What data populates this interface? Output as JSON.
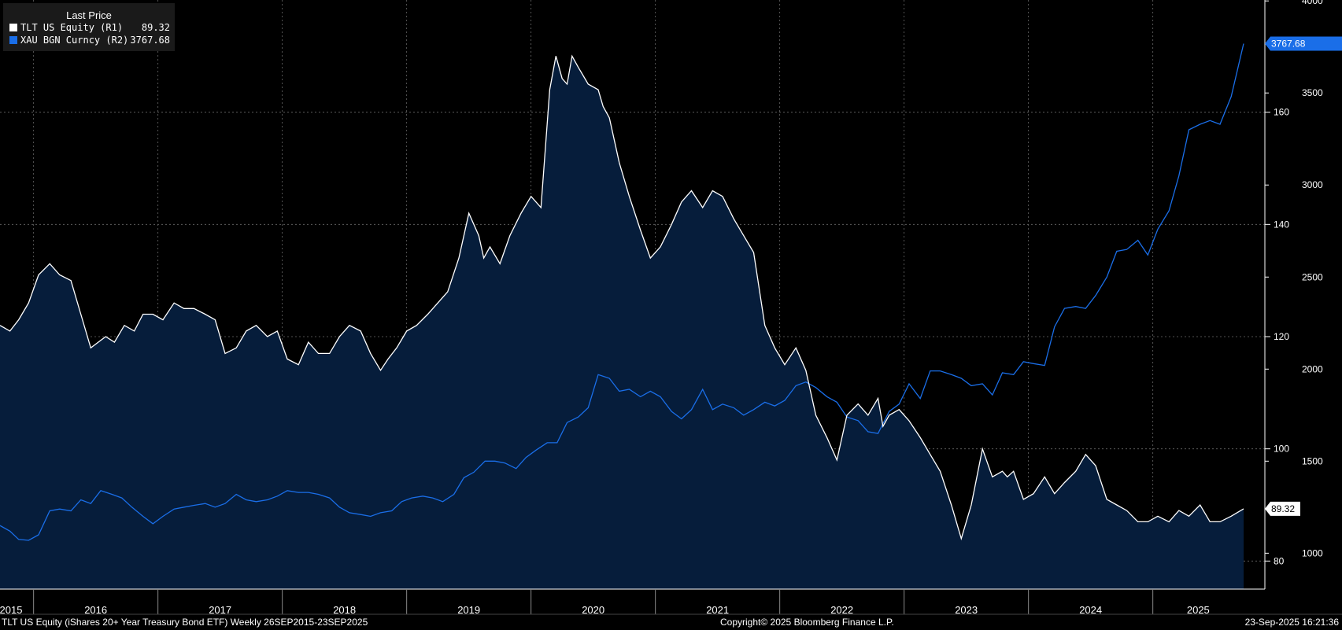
{
  "legend": {
    "title": "Last Price",
    "series1": {
      "label": "TLT US Equity  (R1)",
      "value": "89.32",
      "color": "#ffffff"
    },
    "series2": {
      "label": "XAU BGN Curncy  (R2)",
      "value": "3767.68",
      "color": "#1a6ee8"
    }
  },
  "footer": {
    "left": "TLT US Equity (iShares 20+ Year Treasury Bond ETF)  Weekly 26SEP2015-23SEP2025",
    "center": "Copyright© 2025 Bloomberg Finance L.P.",
    "right": "23-Sep-2025 16:21:36"
  },
  "colors": {
    "background": "#000000",
    "area_fill": "#061d3b",
    "tlt_line": "#ffffff",
    "gold_line": "#1a6ee8",
    "grid": "#6a6a6a"
  },
  "chart_data": {
    "type": "line",
    "title": "Last Price",
    "x_range": [
      2015.73,
      2025.73
    ],
    "year_labels": [
      "2015",
      "2016",
      "2017",
      "2018",
      "2019",
      "2020",
      "2021",
      "2022",
      "2023",
      "2024",
      "2025"
    ],
    "right_axis_1": {
      "ticks": [
        "80",
        "100",
        "120",
        "140",
        "160"
      ],
      "ylim": [
        75,
        180
      ]
    },
    "right_axis_2": {
      "ticks": [
        "1000",
        "1500",
        "2000",
        "2500",
        "3000",
        "3500",
        "4000"
      ],
      "ylim": [
        805,
        4005
      ]
    },
    "last_value_labels": {
      "tlt": "89.32",
      "gold": "3767.68"
    },
    "series": [
      {
        "name": "TLT US Equity (R1)",
        "axis": "R1",
        "style": "area",
        "x": [
          2015.73,
          2015.81,
          2015.88,
          2015.96,
          2016.04,
          2016.13,
          2016.21,
          2016.3,
          2016.38,
          2016.46,
          2016.52,
          2016.58,
          2016.65,
          2016.73,
          2016.81,
          2016.88,
          2016.96,
          2017.04,
          2017.13,
          2017.21,
          2017.29,
          2017.38,
          2017.46,
          2017.54,
          2017.63,
          2017.71,
          2017.79,
          2017.88,
          2017.96,
          2018.04,
          2018.13,
          2018.21,
          2018.29,
          2018.38,
          2018.46,
          2018.54,
          2018.63,
          2018.71,
          2018.79,
          2018.85,
          2018.92,
          2019.0,
          2019.08,
          2019.17,
          2019.25,
          2019.33,
          2019.42,
          2019.5,
          2019.58,
          2019.62,
          2019.67,
          2019.75,
          2019.83,
          2019.92,
          2020.0,
          2020.08,
          2020.15,
          2020.2,
          2020.25,
          2020.29,
          2020.33,
          2020.38,
          2020.46,
          2020.54,
          2020.58,
          2020.63,
          2020.71,
          2020.79,
          2020.88,
          2020.96,
          2021.04,
          2021.13,
          2021.21,
          2021.29,
          2021.38,
          2021.46,
          2021.54,
          2021.63,
          2021.71,
          2021.79,
          2021.88,
          2021.96,
          2022.04,
          2022.13,
          2022.21,
          2022.29,
          2022.38,
          2022.46,
          2022.54,
          2022.63,
          2022.71,
          2022.79,
          2022.83,
          2022.88,
          2022.96,
          2023.04,
          2023.13,
          2023.21,
          2023.29,
          2023.38,
          2023.46,
          2023.54,
          2023.63,
          2023.71,
          2023.79,
          2023.83,
          2023.88,
          2023.96,
          2024.04,
          2024.13,
          2024.21,
          2024.29,
          2024.38,
          2024.46,
          2024.54,
          2024.63,
          2024.71,
          2024.79,
          2024.88,
          2024.96,
          2025.04,
          2025.13,
          2025.21,
          2025.29,
          2025.38,
          2025.46,
          2025.54,
          2025.63,
          2025.73
        ],
        "values": [
          122,
          121,
          123,
          126,
          131,
          133,
          131,
          130,
          124,
          118,
          119,
          120,
          119,
          122,
          121,
          124,
          124,
          123,
          126,
          125,
          125,
          124,
          123,
          117,
          118,
          121,
          122,
          120,
          121,
          116,
          115,
          119,
          117,
          117,
          120,
          122,
          121,
          117,
          114,
          116,
          118,
          121,
          122,
          124,
          126,
          128,
          134,
          142,
          138,
          134,
          136,
          133,
          138,
          142,
          145,
          143,
          164,
          170,
          166,
          165,
          170,
          168,
          165,
          164,
          161,
          159,
          151,
          145,
          139,
          134,
          136,
          140,
          144,
          146,
          143,
          146,
          145,
          141,
          138,
          135,
          122,
          118,
          115,
          118,
          114,
          106,
          102,
          98,
          106,
          108,
          106,
          109,
          104,
          106,
          107,
          105,
          102,
          99,
          96,
          90,
          84,
          90,
          100,
          95,
          96,
          95,
          96,
          91,
          92,
          95,
          92,
          94,
          96,
          99,
          97,
          91,
          90,
          89,
          87,
          87,
          88,
          87,
          89,
          88,
          90,
          87,
          87,
          88,
          89.32
        ]
      },
      {
        "name": "XAU BGN Curncy (R2)",
        "axis": "R2",
        "style": "line",
        "x": [
          2015.73,
          2015.81,
          2015.88,
          2015.96,
          2016.04,
          2016.13,
          2016.21,
          2016.3,
          2016.38,
          2016.46,
          2016.54,
          2016.63,
          2016.71,
          2016.79,
          2016.88,
          2016.96,
          2017.04,
          2017.13,
          2017.21,
          2017.29,
          2017.38,
          2017.46,
          2017.54,
          2017.63,
          2017.71,
          2017.79,
          2017.88,
          2017.96,
          2018.04,
          2018.13,
          2018.21,
          2018.29,
          2018.38,
          2018.46,
          2018.54,
          2018.63,
          2018.71,
          2018.79,
          2018.88,
          2018.96,
          2019.04,
          2019.13,
          2019.21,
          2019.29,
          2019.38,
          2019.46,
          2019.54,
          2019.63,
          2019.71,
          2019.79,
          2019.88,
          2019.96,
          2020.04,
          2020.13,
          2020.21,
          2020.29,
          2020.38,
          2020.46,
          2020.54,
          2020.63,
          2020.71,
          2020.79,
          2020.88,
          2020.96,
          2021.04,
          2021.13,
          2021.21,
          2021.29,
          2021.38,
          2021.46,
          2021.54,
          2021.63,
          2021.71,
          2021.79,
          2021.88,
          2021.96,
          2022.04,
          2022.13,
          2022.21,
          2022.29,
          2022.38,
          2022.46,
          2022.54,
          2022.63,
          2022.71,
          2022.79,
          2022.88,
          2022.96,
          2023.04,
          2023.13,
          2023.21,
          2023.29,
          2023.38,
          2023.46,
          2023.54,
          2023.63,
          2023.71,
          2023.79,
          2023.88,
          2023.96,
          2024.04,
          2024.13,
          2024.21,
          2024.29,
          2024.38,
          2024.46,
          2024.54,
          2024.63,
          2024.71,
          2024.79,
          2024.88,
          2024.96,
          2025.04,
          2025.13,
          2025.21,
          2025.29,
          2025.38,
          2025.46,
          2025.54,
          2025.63,
          2025.73
        ],
        "values": [
          1150,
          1120,
          1075,
          1070,
          1100,
          1230,
          1240,
          1230,
          1290,
          1270,
          1340,
          1320,
          1300,
          1250,
          1200,
          1160,
          1200,
          1240,
          1250,
          1260,
          1270,
          1250,
          1270,
          1320,
          1290,
          1280,
          1290,
          1310,
          1340,
          1330,
          1330,
          1320,
          1300,
          1250,
          1220,
          1210,
          1200,
          1220,
          1230,
          1280,
          1300,
          1310,
          1300,
          1280,
          1320,
          1410,
          1440,
          1500,
          1500,
          1490,
          1460,
          1520,
          1560,
          1600,
          1600,
          1710,
          1740,
          1790,
          1970,
          1950,
          1880,
          1890,
          1850,
          1880,
          1850,
          1770,
          1730,
          1780,
          1890,
          1780,
          1810,
          1790,
          1750,
          1780,
          1820,
          1800,
          1830,
          1910,
          1930,
          1900,
          1850,
          1820,
          1740,
          1720,
          1660,
          1650,
          1770,
          1810,
          1920,
          1840,
          1990,
          1990,
          1970,
          1950,
          1910,
          1920,
          1860,
          1980,
          1970,
          2040,
          2030,
          2020,
          2230,
          2330,
          2340,
          2330,
          2400,
          2500,
          2640,
          2650,
          2700,
          2620,
          2760,
          2860,
          3050,
          3300,
          3330,
          3350,
          3330,
          3480,
          3767.68
        ]
      }
    ]
  }
}
